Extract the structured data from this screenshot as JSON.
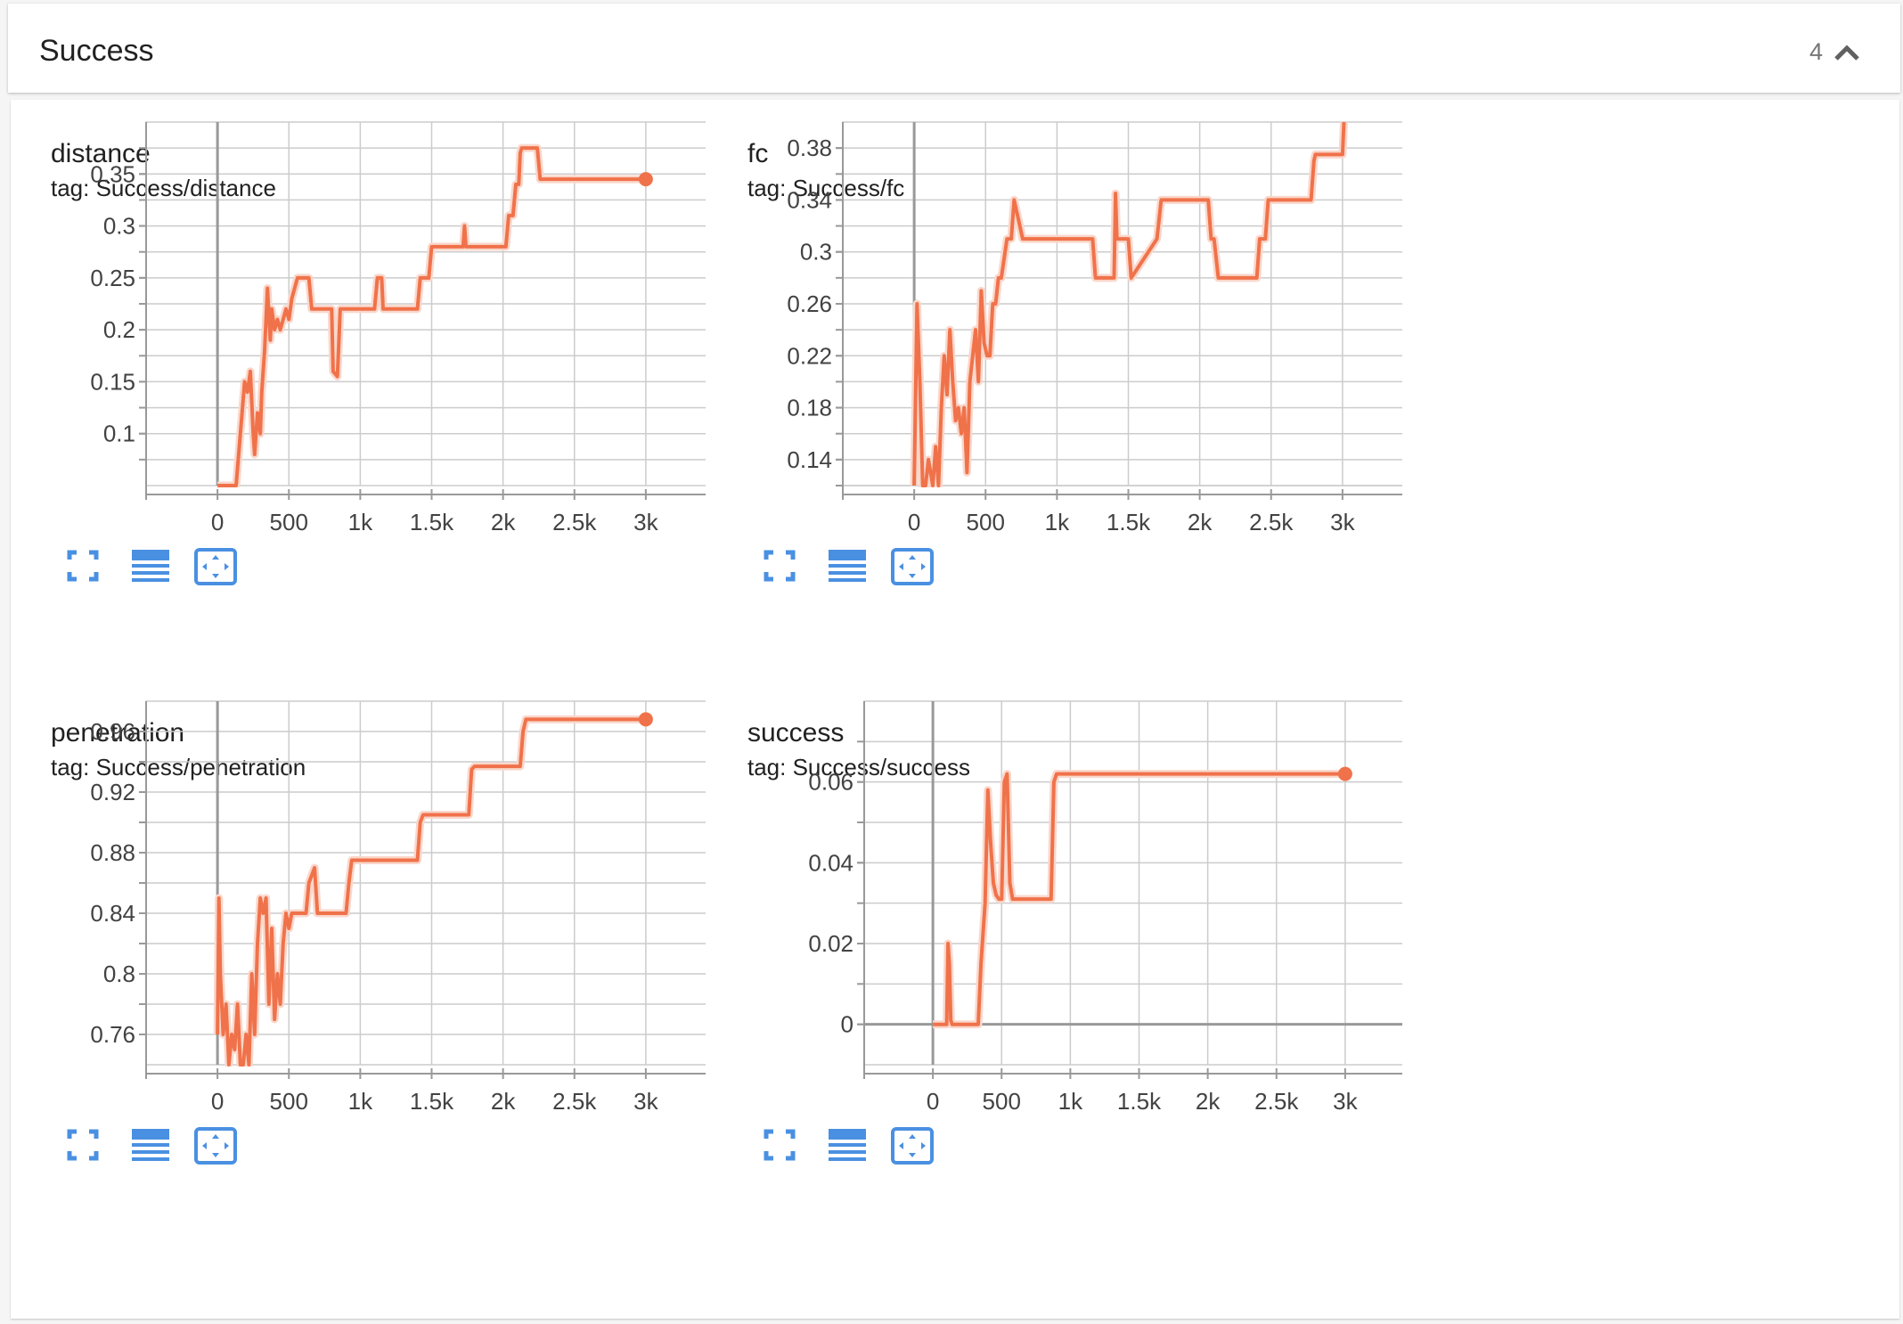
{
  "section": {
    "title": "Success",
    "count": "4"
  },
  "colors": {
    "series": "#f0724a",
    "series_raw": "#fad7cb",
    "grid": "#cccccc",
    "axis": "#999999",
    "icon": "#4a90e2"
  },
  "icons": [
    "fullscreen-icon",
    "data-table-icon",
    "fit-domain-icon",
    "chevron-up-icon"
  ],
  "chart_data": [
    {
      "type": "line",
      "title": "distance",
      "subtitle": "tag: Success/distance",
      "xlim": [
        -500,
        3500
      ],
      "ylim": [
        0.05,
        0.4
      ],
      "xticks": [
        0,
        500,
        1000,
        1500,
        2000,
        2500,
        3000
      ],
      "xtick_labels": [
        "0",
        "500",
        "1k",
        "1.5k",
        "2k",
        "2.5k",
        "3k"
      ],
      "yticks": [
        0.1,
        0.15,
        0.2,
        0.25,
        0.3,
        0.35
      ],
      "ytick_labels": [
        "0.1",
        "0.15",
        "0.2",
        "0.25",
        "0.3",
        "0.35"
      ],
      "grid": true,
      "end_marker": true,
      "series": [
        {
          "x": [
            0,
            100,
            130,
            160,
            190,
            210,
            230,
            250,
            260,
            280,
            300,
            310,
            330,
            350,
            370,
            380,
            400,
            420,
            440,
            460,
            480,
            500,
            520,
            560,
            600,
            640,
            660,
            700,
            800,
            810,
            840,
            860,
            880,
            1100,
            1120,
            1150,
            1160,
            1400,
            1420,
            1480,
            1500,
            1550,
            1560,
            1720,
            1730,
            1740,
            2020,
            2040,
            2070,
            2090,
            2110,
            2120,
            2130,
            2240,
            2260,
            3000
          ],
          "y": [
            0.05,
            0.05,
            0.05,
            0.1,
            0.15,
            0.14,
            0.16,
            0.1,
            0.08,
            0.12,
            0.1,
            0.14,
            0.18,
            0.24,
            0.19,
            0.22,
            0.2,
            0.21,
            0.2,
            0.21,
            0.22,
            0.21,
            0.23,
            0.25,
            0.25,
            0.25,
            0.22,
            0.22,
            0.22,
            0.16,
            0.155,
            0.22,
            0.22,
            0.22,
            0.25,
            0.25,
            0.22,
            0.22,
            0.25,
            0.25,
            0.28,
            0.28,
            0.28,
            0.28,
            0.3,
            0.28,
            0.28,
            0.31,
            0.31,
            0.34,
            0.34,
            0.37,
            0.375,
            0.375,
            0.345,
            0.345
          ]
        }
      ]
    },
    {
      "type": "line",
      "title": "fc",
      "subtitle": "tag: Success/fc",
      "xlim": [
        -500,
        3500
      ],
      "ylim": [
        0.12,
        0.4
      ],
      "xticks": [
        0,
        500,
        1000,
        1500,
        2000,
        2500,
        3000
      ],
      "xtick_labels": [
        "0",
        "500",
        "1k",
        "1.5k",
        "2k",
        "2.5k",
        "3k"
      ],
      "yticks": [
        0.14,
        0.18,
        0.22,
        0.26,
        0.3,
        0.34,
        0.38
      ],
      "ytick_labels": [
        "0.14",
        "0.18",
        "0.22",
        "0.26",
        "0.3",
        "0.34",
        "0.38"
      ],
      "grid": true,
      "end_marker": false,
      "series": [
        {
          "x": [
            0,
            20,
            40,
            60,
            80,
            100,
            130,
            150,
            170,
            190,
            210,
            230,
            250,
            270,
            290,
            310,
            330,
            350,
            370,
            390,
            410,
            430,
            450,
            470,
            490,
            510,
            530,
            550,
            570,
            590,
            610,
            650,
            680,
            700,
            760,
            790,
            800,
            820,
            840,
            1250,
            1270,
            1400,
            1410,
            1420,
            1450,
            1500,
            1520,
            1700,
            1730,
            2060,
            2080,
            2100,
            2130,
            2400,
            2420,
            2460,
            2480,
            2780,
            2800,
            2810,
            3000,
            3010
          ],
          "y": [
            0.12,
            0.26,
            0.2,
            0.12,
            0.12,
            0.14,
            0.12,
            0.15,
            0.12,
            0.18,
            0.22,
            0.19,
            0.24,
            0.2,
            0.17,
            0.18,
            0.16,
            0.18,
            0.13,
            0.2,
            0.22,
            0.24,
            0.2,
            0.27,
            0.23,
            0.22,
            0.22,
            0.26,
            0.26,
            0.28,
            0.28,
            0.31,
            0.31,
            0.34,
            0.31,
            0.31,
            0.31,
            0.31,
            0.31,
            0.31,
            0.28,
            0.28,
            0.345,
            0.31,
            0.31,
            0.31,
            0.28,
            0.31,
            0.34,
            0.34,
            0.31,
            0.31,
            0.28,
            0.28,
            0.31,
            0.31,
            0.34,
            0.34,
            0.37,
            0.375,
            0.375,
            0.4
          ]
        }
      ]
    },
    {
      "type": "line",
      "title": "penetration",
      "subtitle": "tag: Success/penetration",
      "xlim": [
        -500,
        3500
      ],
      "ylim": [
        0.74,
        0.98
      ],
      "xticks": [
        0,
        500,
        1000,
        1500,
        2000,
        2500,
        3000
      ],
      "xtick_labels": [
        "0",
        "500",
        "1k",
        "1.5k",
        "2k",
        "2.5k",
        "3k"
      ],
      "yticks": [
        0.76,
        0.8,
        0.84,
        0.88,
        0.92,
        0.96
      ],
      "ytick_labels": [
        "0.76",
        "0.8",
        "0.84",
        "0.88",
        "0.92",
        "0.96"
      ],
      "grid": true,
      "end_marker": true,
      "series": [
        {
          "x": [
            0,
            10,
            20,
            40,
            60,
            80,
            100,
            120,
            140,
            160,
            180,
            200,
            220,
            240,
            260,
            280,
            300,
            320,
            340,
            360,
            380,
            400,
            420,
            440,
            460,
            480,
            500,
            520,
            560,
            600,
            620,
            640,
            680,
            700,
            900,
            920,
            940,
            1400,
            1420,
            1440,
            1460,
            1760,
            1780,
            1800,
            2120,
            2140,
            2160,
            3000
          ],
          "y": [
            0.76,
            0.85,
            0.8,
            0.76,
            0.78,
            0.74,
            0.76,
            0.75,
            0.78,
            0.74,
            0.74,
            0.76,
            0.74,
            0.8,
            0.76,
            0.82,
            0.85,
            0.84,
            0.85,
            0.78,
            0.83,
            0.77,
            0.8,
            0.78,
            0.82,
            0.84,
            0.83,
            0.84,
            0.84,
            0.84,
            0.84,
            0.86,
            0.87,
            0.84,
            0.84,
            0.86,
            0.875,
            0.875,
            0.9,
            0.905,
            0.905,
            0.905,
            0.935,
            0.937,
            0.937,
            0.96,
            0.968,
            0.968
          ]
        }
      ]
    },
    {
      "type": "line",
      "title": "success",
      "subtitle": "tag: Success/success",
      "xlim": [
        -500,
        3500
      ],
      "ylim": [
        -0.01,
        0.08
      ],
      "xticks": [
        0,
        500,
        1000,
        1500,
        2000,
        2500,
        3000
      ],
      "xtick_labels": [
        "0",
        "500",
        "1k",
        "1.5k",
        "2k",
        "2.5k",
        "3k"
      ],
      "yticks": [
        0,
        0.02,
        0.04,
        0.06
      ],
      "ytick_labels": [
        "0",
        "0.02",
        "0.04",
        "0.06"
      ],
      "grid": true,
      "end_marker": true,
      "series": [
        {
          "x": [
            0,
            100,
            110,
            120,
            130,
            140,
            160,
            330,
            350,
            380,
            400,
            420,
            440,
            460,
            480,
            500,
            520,
            540,
            560,
            580,
            600,
            860,
            880,
            900,
            3000
          ],
          "y": [
            0,
            0,
            0.02,
            0.015,
            0.001,
            0,
            0,
            0,
            0.015,
            0.03,
            0.058,
            0.045,
            0.035,
            0.032,
            0.031,
            0.031,
            0.06,
            0.062,
            0.035,
            0.031,
            0.031,
            0.031,
            0.06,
            0.062,
            0.062
          ]
        }
      ]
    }
  ]
}
